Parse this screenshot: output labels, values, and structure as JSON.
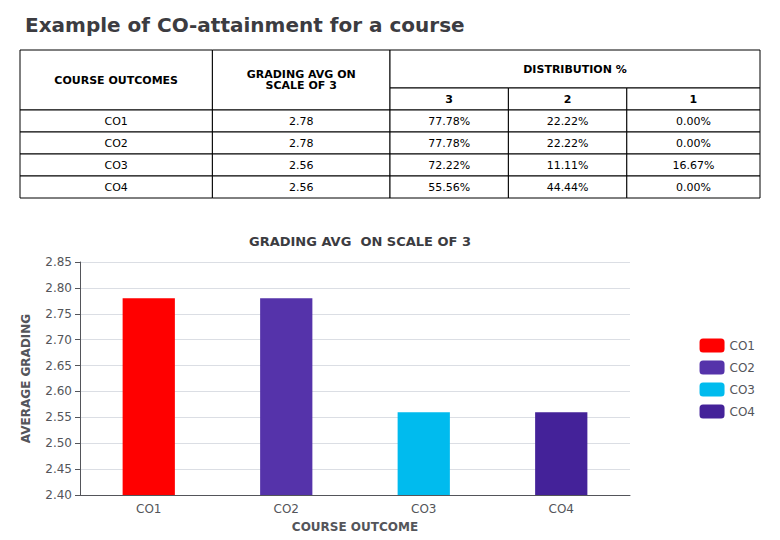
{
  "title": "Example of CO-attainment for a course",
  "chart_data": [
    {
      "type": "table",
      "columns": [
        "COURSE OUTCOMES",
        "GRADING AVG ON\nSCALE OF 3",
        "DISTRIBUTION %"
      ],
      "subcolumns": [
        "3",
        "2",
        "1"
      ],
      "rows": [
        [
          "CO1",
          "2.78",
          "77.78%",
          "22.22%",
          "0.00%"
        ],
        [
          "CO2",
          "2.78",
          "77.78%",
          "22.22%",
          "0.00%"
        ],
        [
          "CO3",
          "2.56",
          "72.22%",
          "11.11%",
          "16.67%"
        ],
        [
          "CO4",
          "2.56",
          "55.56%",
          "44.44%",
          "0.00%"
        ]
      ]
    },
    {
      "type": "bar",
      "title": "GRADING AVG  ON SCALE OF 3",
      "xlabel": "COURSE OUTCOME",
      "ylabel": "AVERAGE GRADING",
      "categories": [
        "CO1",
        "CO2",
        "CO3",
        "CO4"
      ],
      "values": [
        2.78,
        2.78,
        2.56,
        2.56
      ],
      "colors": [
        "#FF0000",
        "#5533AA",
        "#00BBEE",
        "#442299"
      ],
      "ylim": [
        2.4,
        2.85
      ],
      "yticks": [
        {
          "value": 2.4,
          "label": "2.40"
        },
        {
          "value": 2.45,
          "label": "2.45"
        },
        {
          "value": 2.5,
          "label": "2.50"
        },
        {
          "value": 2.55,
          "label": "2.55"
        },
        {
          "value": 2.6,
          "label": "2.60"
        },
        {
          "value": 2.65,
          "label": "2.65"
        },
        {
          "value": 2.7,
          "label": "2.70"
        },
        {
          "value": 2.75,
          "label": "2.75"
        },
        {
          "value": 2.8,
          "label": "2.80"
        },
        {
          "value": 2.85,
          "label": "2.85"
        }
      ],
      "grid": true,
      "legend": "right"
    }
  ]
}
